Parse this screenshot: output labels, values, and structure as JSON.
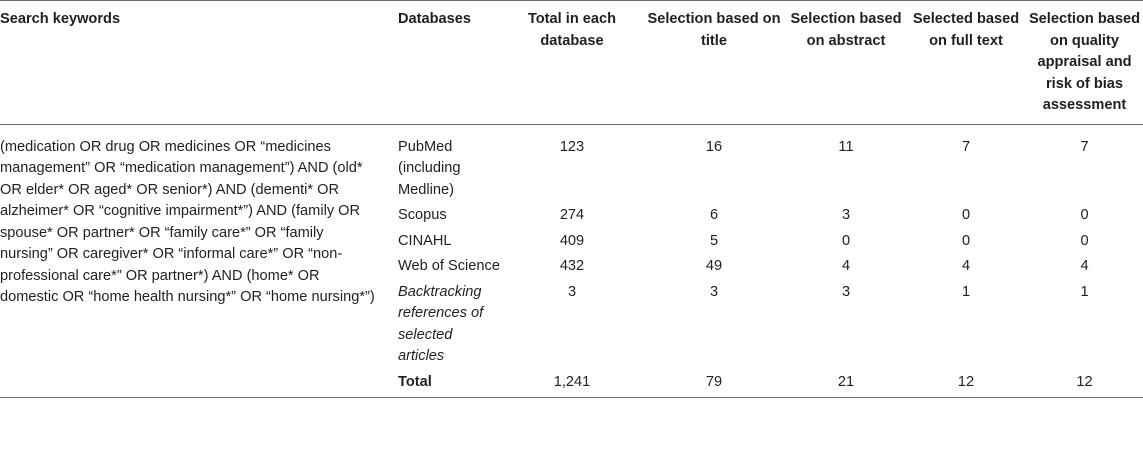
{
  "headers": [
    "Search keywords",
    "Databases",
    "Total in each database",
    "Selection based on title",
    "Selection based on abstract",
    "Selected based on full text",
    "Selection based on quality appraisal and risk of bias assessment"
  ],
  "search_keywords": "(medication OR drug OR medicines OR “medicines management” OR “medication management”) AND (old* OR elder* OR aged* OR senior*) AND (dementi* OR alzheimer* OR “cognitive impairment*”) AND (family OR spouse* OR partner* OR “family care*” OR “family nursing” OR caregiver* OR “informal care*” OR “non-professional care*” OR partner*) AND (home* OR domestic OR “home health nursing*” OR “home nursing*”)",
  "rows": [
    {
      "db": "PubMed (including Medline)",
      "total": "123",
      "title": "16",
      "abstract": "11",
      "full": "7",
      "quality": "7"
    },
    {
      "db": "Scopus",
      "total": "274",
      "title": "6",
      "abstract": "3",
      "full": "0",
      "quality": "0"
    },
    {
      "db": "CINAHL",
      "total": "409",
      "title": "5",
      "abstract": "0",
      "full": "0",
      "quality": "0"
    },
    {
      "db": "Web of Science",
      "total": "432",
      "title": "49",
      "abstract": "4",
      "full": "4",
      "quality": "4"
    },
    {
      "db": "Backtracking references of selected articles",
      "total": "3",
      "title": "3",
      "abstract": "3",
      "full": "1",
      "quality": "1"
    }
  ],
  "total_row": {
    "label": "Total",
    "total": "1,241",
    "title": "79",
    "abstract": "21",
    "full": "12",
    "quality": "12"
  }
}
